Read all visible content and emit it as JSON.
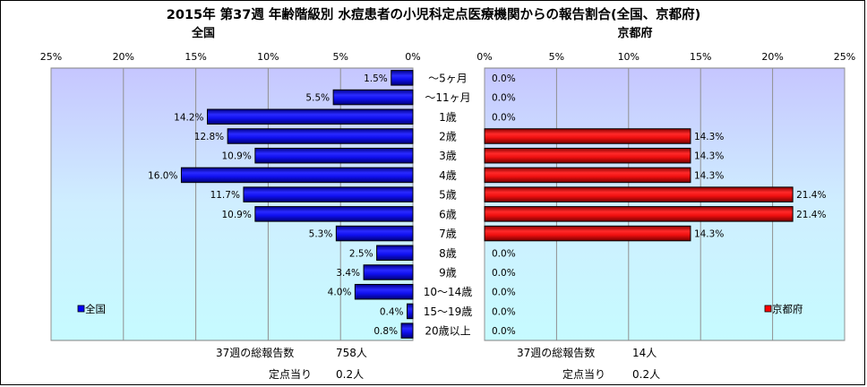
{
  "chart_data": {
    "type": "bar",
    "title": "2015年 第37週 年齢階級別 水痘患者の小児科定点医療機関からの報告割合(全国、京都府)",
    "categories": [
      "～5ヶ月",
      "～11ヶ月",
      "1歳",
      "2歳",
      "3歳",
      "4歳",
      "5歳",
      "6歳",
      "7歳",
      "8歳",
      "9歳",
      "10～14歳",
      "15～19歳",
      "20歳以上"
    ],
    "panels": [
      {
        "name": "全国",
        "legend": "全国",
        "legend_position": "bottom-left",
        "color": "#0000ff",
        "axis_ticks": [
          "25%",
          "20%",
          "15%",
          "10%",
          "5%",
          "0%"
        ],
        "xlim": [
          0,
          25
        ],
        "direction": "left",
        "values": [
          1.5,
          5.5,
          14.2,
          12.8,
          10.9,
          16.0,
          11.7,
          10.9,
          5.3,
          2.5,
          3.4,
          4.0,
          0.4,
          0.8
        ],
        "labels": [
          "1.5%",
          "5.5%",
          "14.2%",
          "12.8%",
          "10.9%",
          "16.0%",
          "11.7%",
          "10.9%",
          "5.3%",
          "2.5%",
          "3.4%",
          "4.0%",
          "0.4%",
          "0.8%"
        ],
        "total_label": "37週の総報告数",
        "total_value": "758人",
        "per_label": "定点当り",
        "per_value": "0.2人"
      },
      {
        "name": "京都府",
        "legend": "京都府",
        "legend_position": "bottom-right",
        "color": "#ff0000",
        "axis_ticks": [
          "0%",
          "5%",
          "10%",
          "15%",
          "20%",
          "25%"
        ],
        "xlim": [
          0,
          25
        ],
        "direction": "right",
        "values": [
          0.0,
          0.0,
          0.0,
          14.3,
          14.3,
          14.3,
          21.4,
          21.4,
          14.3,
          0.0,
          0.0,
          0.0,
          0.0,
          0.0
        ],
        "labels": [
          "0.0%",
          "0.0%",
          "0.0%",
          "14.3%",
          "14.3%",
          "14.3%",
          "21.4%",
          "21.4%",
          "14.3%",
          "0.0%",
          "0.0%",
          "0.0%",
          "0.0%",
          "0.0%"
        ],
        "total_label": "37週の総報告数",
        "total_value": "14人",
        "per_label": "定点当り",
        "per_value": "0.2人"
      }
    ],
    "grid": true
  }
}
